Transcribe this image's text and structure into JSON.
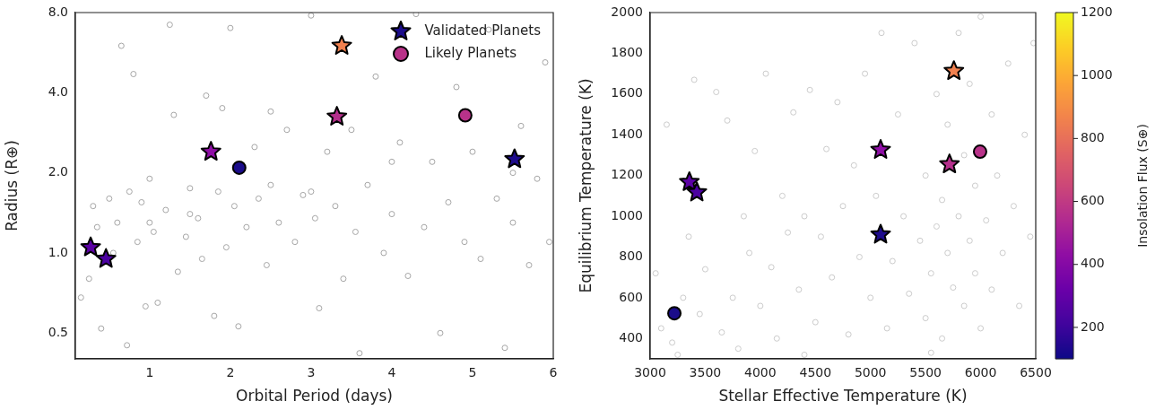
{
  "chart_data": [
    {
      "type": "scatter",
      "xlabel": "Orbital Period (days)",
      "ylabel": "Radius (R⊕)",
      "log": "y",
      "xlim": [
        0.08,
        6
      ],
      "xticks": [
        1,
        2,
        3,
        4,
        5,
        6
      ],
      "ylim": [
        0.4,
        8
      ],
      "yticks": [
        {
          "value": 0.5,
          "label": "0.5"
        },
        {
          "value": 1,
          "label": "1.0"
        },
        {
          "value": 2,
          "label": "2.0"
        },
        {
          "value": 4,
          "label": "4.0"
        },
        {
          "value": 8,
          "label": "8.0"
        }
      ],
      "grid": false,
      "legend": "top right",
      "series": [
        {
          "color": "#a6a6a6",
          "marker": "circle",
          "x": [
            0.15,
            0.25,
            0.3,
            0.35,
            0.4,
            0.5,
            0.55,
            0.6,
            0.65,
            0.72,
            0.75,
            0.8,
            0.85,
            0.9,
            0.95,
            1.0,
            1.05,
            1.1,
            1.2,
            1.25,
            1.3,
            1.35,
            1.45,
            1.5,
            1.6,
            1.65,
            1.7,
            1.8,
            1.85,
            1.9,
            1.95,
            2.0,
            2.05,
            2.1,
            2.2,
            2.3,
            2.35,
            2.45,
            2.5,
            2.6,
            2.7,
            2.8,
            2.9,
            3.0,
            3.05,
            3.1,
            3.2,
            3.3,
            3.4,
            3.5,
            3.55,
            3.6,
            3.7,
            3.8,
            3.9,
            4.0,
            4.1,
            4.2,
            4.3,
            4.4,
            4.5,
            4.6,
            4.7,
            4.8,
            4.9,
            5.0,
            5.1,
            5.2,
            5.3,
            5.4,
            5.5,
            5.6,
            5.7,
            5.8,
            5.9,
            5.95,
            5.5,
            4.0,
            3.0,
            2.5,
            1.5,
            1.0
          ],
          "values": [
            0.68,
            0.8,
            1.5,
            1.25,
            0.52,
            1.6,
            1.0,
            1.3,
            6.0,
            0.45,
            1.7,
            4.7,
            1.1,
            1.55,
            0.63,
            1.9,
            1.2,
            0.65,
            1.45,
            7.2,
            3.3,
            0.85,
            1.15,
            1.75,
            1.35,
            0.95,
            3.9,
            0.58,
            1.7,
            3.5,
            1.05,
            7.0,
            1.5,
            0.53,
            1.25,
            2.5,
            1.6,
            0.9,
            3.4,
            1.3,
            2.9,
            1.1,
            1.65,
            7.8,
            1.35,
            0.62,
            2.4,
            1.5,
            0.8,
            2.9,
            1.2,
            0.42,
            1.8,
            4.6,
            1.0,
            1.4,
            2.6,
            0.82,
            7.9,
            1.25,
            2.2,
            0.5,
            1.55,
            4.2,
            1.1,
            2.4,
            0.95,
            6.9,
            1.6,
            0.44,
            1.3,
            3.0,
            0.9,
            1.9,
            5.2,
            1.1,
            2.0,
            2.2,
            1.7,
            1.8,
            1.4,
            1.3
          ]
        },
        {
          "name": "Validated Planets",
          "color": "#1b0c8a",
          "marker": "star",
          "x": [
            0.27,
            0.46,
            1.76,
            3.32,
            3.38,
            5.52
          ],
          "values": [
            1.05,
            0.95,
            2.4,
            3.25,
            6.0,
            2.25
          ],
          "colors": [
            "#5b02a3",
            "#4c02a1",
            "#8e0ea5",
            "#b52f8c",
            "#f0804f",
            "#1e0c8c"
          ]
        },
        {
          "name": "Likely Planets",
          "color": "#b83289",
          "marker": "circle",
          "x": [
            2.11,
            4.91
          ],
          "values": [
            2.09,
            3.29
          ],
          "colors": [
            "#1b0c8a",
            "#b83289"
          ]
        }
      ]
    },
    {
      "type": "scatter",
      "xlabel": "Stellar Effective Temperature (K)",
      "ylabel": "Equilibrium Temperature (K)",
      "clabel": "Insolation Flux (S⊕)",
      "clim": [
        100,
        1200
      ],
      "cticks": [
        200,
        400,
        600,
        800,
        1000,
        1200
      ],
      "xlim": [
        3000,
        6500
      ],
      "xticks": [
        3000,
        3500,
        4000,
        4500,
        5000,
        5500,
        6000,
        6500
      ],
      "ylim": [
        300,
        2000
      ],
      "yticks": [
        400,
        600,
        800,
        1000,
        1200,
        1400,
        1600,
        1800,
        2000
      ],
      "grid": false,
      "series": [
        {
          "color": "#cccccc",
          "marker": "circle",
          "x": [
            3050,
            3100,
            3150,
            3200,
            3300,
            3350,
            3400,
            3450,
            3500,
            3600,
            3650,
            3700,
            3750,
            3800,
            3850,
            3900,
            3950,
            4000,
            4050,
            4100,
            4150,
            4200,
            4250,
            4300,
            4350,
            4400,
            4450,
            4500,
            4550,
            4600,
            4650,
            4700,
            4750,
            4800,
            4850,
            4900,
            4950,
            5000,
            5050,
            5100,
            5150,
            5200,
            5250,
            5300,
            5350,
            5400,
            5450,
            5500,
            5500,
            5550,
            5600,
            5600,
            5650,
            5650,
            5700,
            5700,
            5750,
            5800,
            5800,
            5850,
            5850,
            5900,
            5900,
            5950,
            5950,
            6000,
            6000,
            6050,
            6100,
            6100,
            6150,
            6200,
            6250,
            6300,
            6350,
            6400,
            6450,
            6480,
            5550,
            4400,
            3250
          ],
          "values": [
            720,
            450,
            1450,
            380,
            600,
            900,
            1670,
            520,
            740,
            1610,
            430,
            1470,
            600,
            350,
            1000,
            820,
            1320,
            560,
            1700,
            750,
            400,
            1100,
            920,
            1510,
            640,
            1000,
            1620,
            480,
            900,
            1330,
            700,
            1560,
            1050,
            420,
            1250,
            800,
            1700,
            600,
            1100,
            1900,
            450,
            780,
            1500,
            1000,
            620,
            1850,
            880,
            1200,
            500,
            720,
            1600,
            950,
            400,
            1080,
            820,
            1450,
            650,
            1900,
            1000,
            560,
            1300,
            880,
            1650,
            720,
            1150,
            1980,
            450,
            980,
            1500,
            640,
            1200,
            820,
            1750,
            1050,
            560,
            1400,
            900,
            1850,
            330,
            320,
            320
          ]
        },
        {
          "marker": "star",
          "x": [
            3356,
            3424,
            5092,
            5717,
            5757,
            5092
          ],
          "values": [
            1168,
            1117,
            1326,
            1255,
            1713,
            910
          ],
          "colors": [
            "#5b02a3",
            "#4c02a1",
            "#8e0ea5",
            "#b52f8c",
            "#f0804f",
            "#1e0c8c"
          ]
        },
        {
          "marker": "circle",
          "x": [
            3220,
            5995
          ],
          "values": [
            524,
            1317
          ],
          "colors": [
            "#1b0c8a",
            "#b83289"
          ]
        }
      ]
    }
  ]
}
